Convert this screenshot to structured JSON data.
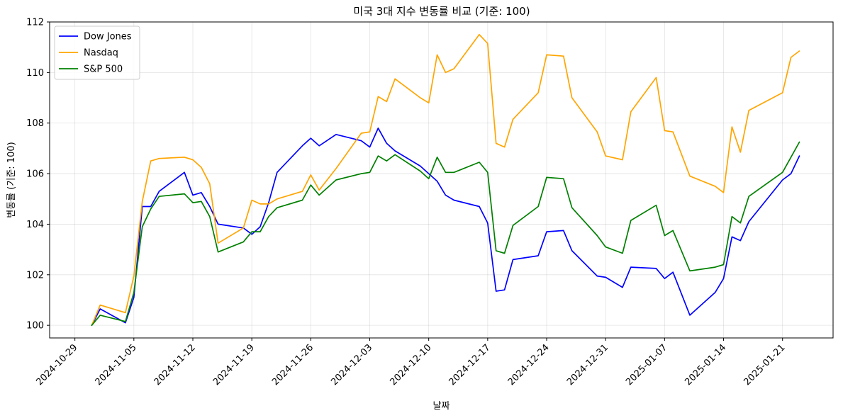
{
  "chart_data": {
    "type": "line",
    "title": "미국 3대 지수 변동률 비교 (기준: 100)",
    "xlabel": "날짜",
    "ylabel": "변동률 (기준: 100)",
    "ylim": [
      99.5,
      112
    ],
    "xlim": [
      "2024-10-26",
      "2025-01-27"
    ],
    "grid": true,
    "legend_position": "top-left",
    "xticks": [
      "2024-10-29",
      "2024-11-05",
      "2024-11-12",
      "2024-11-19",
      "2024-11-26",
      "2024-12-03",
      "2024-12-10",
      "2024-12-17",
      "2024-12-24",
      "2024-12-31",
      "2025-01-07",
      "2025-01-14",
      "2025-01-21"
    ],
    "yticks": [
      100,
      102,
      104,
      106,
      108,
      110,
      112
    ],
    "x": [
      "2024-10-31",
      "2024-11-01",
      "2024-11-04",
      "2024-11-05",
      "2024-11-06",
      "2024-11-07",
      "2024-11-08",
      "2024-11-11",
      "2024-11-12",
      "2024-11-13",
      "2024-11-14",
      "2024-11-15",
      "2024-11-18",
      "2024-11-19",
      "2024-11-20",
      "2024-11-21",
      "2024-11-22",
      "2024-11-25",
      "2024-11-26",
      "2024-11-27",
      "2024-11-29",
      "2024-12-02",
      "2024-12-03",
      "2024-12-04",
      "2024-12-05",
      "2024-12-06",
      "2024-12-09",
      "2024-12-10",
      "2024-12-11",
      "2024-12-12",
      "2024-12-13",
      "2024-12-16",
      "2024-12-17",
      "2024-12-18",
      "2024-12-19",
      "2024-12-20",
      "2024-12-23",
      "2024-12-24",
      "2024-12-26",
      "2024-12-27",
      "2024-12-30",
      "2024-12-31",
      "2025-01-02",
      "2025-01-03",
      "2025-01-06",
      "2025-01-07",
      "2025-01-08",
      "2025-01-10",
      "2025-01-13",
      "2025-01-14",
      "2025-01-15",
      "2025-01-16",
      "2025-01-17",
      "2025-01-21",
      "2025-01-22",
      "2025-01-23"
    ],
    "series": [
      {
        "name": "Dow Jones",
        "color": "#0000ff",
        "values": [
          100.0,
          100.65,
          100.1,
          101.1,
          104.7,
          104.7,
          105.3,
          106.05,
          105.15,
          105.25,
          104.7,
          104.0,
          103.85,
          103.6,
          103.9,
          104.85,
          106.05,
          107.1,
          107.4,
          107.1,
          107.55,
          107.3,
          107.05,
          107.8,
          107.2,
          106.9,
          106.3,
          106.0,
          105.7,
          105.15,
          104.95,
          104.7,
          104.05,
          101.35,
          101.4,
          102.6,
          102.75,
          103.7,
          103.75,
          102.95,
          101.95,
          101.9,
          101.5,
          102.3,
          102.25,
          101.85,
          102.1,
          100.4,
          101.3,
          101.85,
          103.5,
          103.35,
          104.1,
          105.75,
          106.0,
          106.7
        ]
      },
      {
        "name": "Nasdaq",
        "color": "#ffa500",
        "values": [
          100.0,
          100.8,
          100.5,
          101.95,
          104.9,
          106.5,
          106.6,
          106.65,
          106.55,
          106.25,
          105.6,
          103.25,
          103.85,
          104.95,
          104.8,
          104.8,
          105.0,
          105.3,
          105.95,
          105.35,
          106.2,
          107.6,
          107.65,
          109.05,
          108.85,
          109.75,
          109.0,
          108.8,
          110.7,
          110.0,
          110.15,
          111.5,
          111.15,
          107.2,
          107.05,
          108.15,
          109.2,
          110.7,
          110.65,
          109.0,
          107.65,
          106.7,
          106.55,
          108.45,
          109.8,
          107.7,
          107.65,
          105.9,
          105.5,
          105.25,
          107.85,
          106.85,
          108.5,
          109.2,
          110.6,
          110.85
        ]
      },
      {
        "name": "S&P 500",
        "color": "#008000",
        "values": [
          100.0,
          100.4,
          100.15,
          101.3,
          103.9,
          104.6,
          105.1,
          105.2,
          104.85,
          104.9,
          104.3,
          102.9,
          103.3,
          103.7,
          103.7,
          104.3,
          104.65,
          104.95,
          105.55,
          105.15,
          105.75,
          106.0,
          106.05,
          106.7,
          106.5,
          106.75,
          106.1,
          105.8,
          106.65,
          106.05,
          106.05,
          106.45,
          106.05,
          102.95,
          102.85,
          103.95,
          104.7,
          105.85,
          105.8,
          104.65,
          103.55,
          103.1,
          102.85,
          104.15,
          104.75,
          103.55,
          103.75,
          102.15,
          102.3,
          102.4,
          104.3,
          104.05,
          105.1,
          106.05,
          106.65,
          107.25
        ]
      }
    ]
  }
}
